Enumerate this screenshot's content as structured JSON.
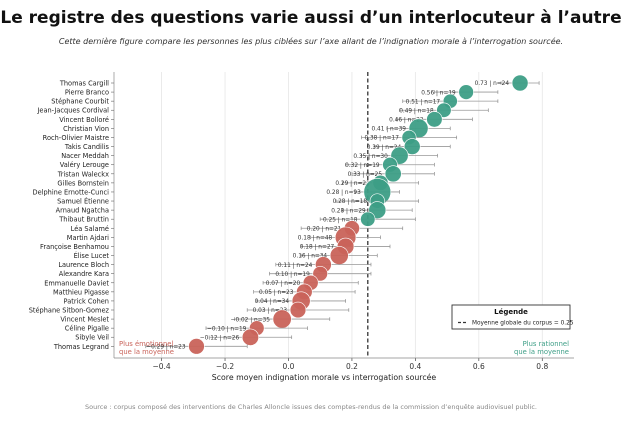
{
  "title": "Le registre des questions varie aussi d’un interlocuteur à l’autre",
  "subtitle": "Cette dernière figure compare les personnes les plus ciblées sur l’axe allant de l’indignation morale à l’interrogation sourcée.",
  "source": "Source : corpus composé des interventions de Charles Alloncle issues des comptes-rendus de la commission d’enquête audiovisuel public.",
  "annotations": {
    "left": [
      "Plus émotionnel",
      "que la moyenne"
    ],
    "right": [
      "Plus rationnel",
      "que la moyenne"
    ]
  },
  "colors": {
    "positive": "#3d9e86",
    "negative": "#c9635a",
    "errorbar": "#999999",
    "mean_line": "#333333"
  },
  "chart_data": {
    "type": "scatter",
    "xlabel": "Score moyen indignation morale vs interrogation sourcée",
    "ylabel": "",
    "xlim": [
      -0.55,
      0.9
    ],
    "xticks": [
      -0.4,
      -0.2,
      0.0,
      0.2,
      0.4,
      0.6,
      0.8
    ],
    "xticklabels": [
      "−0.4",
      "−0.2",
      "0.0",
      "0.2",
      "0.4",
      "0.6",
      "0.8"
    ],
    "grid": "vertical",
    "mean": 0.25,
    "legend": {
      "title": "Légende",
      "entry": "Moyenne globale du corpus = 0.25",
      "position": "lower right"
    },
    "points": [
      {
        "name": "Thomas Cargill",
        "value": 0.73,
        "n": 24,
        "label": "0.73 | n=24",
        "lo": 0.67,
        "hi": 0.79
      },
      {
        "name": "Pierre Branco",
        "value": 0.56,
        "n": 19,
        "label": "0.56 | n=19",
        "lo": 0.46,
        "hi": 0.66
      },
      {
        "name": "Stéphane Courbit",
        "value": 0.51,
        "n": 17,
        "label": "0.51 | n=17",
        "lo": 0.36,
        "hi": 0.66
      },
      {
        "name": "Jean-Jacques Cordival",
        "value": 0.49,
        "n": 18,
        "label": "0.49 | n=18",
        "lo": 0.35,
        "hi": 0.63
      },
      {
        "name": "Vincent Bolloré",
        "value": 0.46,
        "n": 22,
        "label": "0.46 | n=22",
        "lo": 0.34,
        "hi": 0.58
      },
      {
        "name": "Christian Vion",
        "value": 0.41,
        "n": 39,
        "label": "0.41 | n=39",
        "lo": 0.31,
        "hi": 0.51
      },
      {
        "name": "Roch-Olivier Maistre",
        "value": 0.38,
        "n": 17,
        "label": "0.38 | n=17",
        "lo": 0.23,
        "hi": 0.53
      },
      {
        "name": "Takis Candilis",
        "value": 0.39,
        "n": 24,
        "label": "0.39 | n=24",
        "lo": 0.27,
        "hi": 0.51
      },
      {
        "name": "Nacer Meddah",
        "value": 0.35,
        "n": 30,
        "label": "0.35 | n=30",
        "lo": 0.23,
        "hi": 0.47
      },
      {
        "name": "Valéry Lerouge",
        "value": 0.32,
        "n": 19,
        "label": "0.32 | n=19",
        "lo": 0.18,
        "hi": 0.46
      },
      {
        "name": "Tristan Waleckx",
        "value": 0.33,
        "n": 25,
        "label": "0.33 | n=25",
        "lo": 0.2,
        "hi": 0.46
      },
      {
        "name": "Gilles Bornstein",
        "value": 0.29,
        "n": 21,
        "label": "0.29 | n=21",
        "lo": 0.17,
        "hi": 0.41
      },
      {
        "name": "Delphine Ernotte-Cunci",
        "value": 0.28,
        "n": 93,
        "label": "0.28 | n=93",
        "lo": 0.21,
        "hi": 0.35
      },
      {
        "name": "Samuel Étienne",
        "value": 0.28,
        "n": 18,
        "label": "0.28 | n=18",
        "lo": 0.15,
        "hi": 0.41
      },
      {
        "name": "Arnaud Ngatcha",
        "value": 0.28,
        "n": 29,
        "label": "0.28 | n=29",
        "lo": 0.17,
        "hi": 0.39
      },
      {
        "name": "Thibaut Bruttin",
        "value": 0.25,
        "n": 18,
        "label": "0.25 | n=18",
        "lo": 0.1,
        "hi": 0.4
      },
      {
        "name": "Léa Salamé",
        "value": 0.2,
        "n": 21,
        "label": "0.20 | n=21",
        "lo": 0.04,
        "hi": 0.36
      },
      {
        "name": "Martin Ajdari",
        "value": 0.18,
        "n": 48,
        "label": "0.18 | n=48",
        "lo": 0.07,
        "hi": 0.29
      },
      {
        "name": "Françoise Benhamou",
        "value": 0.18,
        "n": 27,
        "label": "0.18 | n=27",
        "lo": 0.04,
        "hi": 0.32
      },
      {
        "name": "Élise Lucet",
        "value": 0.16,
        "n": 34,
        "label": "0.16 | n=34",
        "lo": 0.04,
        "hi": 0.28
      },
      {
        "name": "Laurence Bloch",
        "value": 0.11,
        "n": 24,
        "label": "0.11 | n=24",
        "lo": -0.04,
        "hi": 0.26
      },
      {
        "name": "Alexandre Kara",
        "value": 0.1,
        "n": 19,
        "label": "0.10 | n=19",
        "lo": -0.06,
        "hi": 0.26
      },
      {
        "name": "Emmanuelle Daviet",
        "value": 0.07,
        "n": 20,
        "label": "0.07 | n=20",
        "lo": -0.08,
        "hi": 0.22
      },
      {
        "name": "Matthieu Pigasse",
        "value": 0.05,
        "n": 23,
        "label": "0.05 | n=23",
        "lo": -0.11,
        "hi": 0.21
      },
      {
        "name": "Patrick Cohen",
        "value": 0.04,
        "n": 34,
        "label": "0.04 | n=34",
        "lo": -0.1,
        "hi": 0.18
      },
      {
        "name": "Stéphane Sitbon-Gomez",
        "value": 0.03,
        "n": 23,
        "label": "0.03 | n=23",
        "lo": -0.13,
        "hi": 0.19
      },
      {
        "name": "Vincent Meslet",
        "value": -0.02,
        "n": 35,
        "label": "−0.02 | n=35",
        "lo": -0.17,
        "hi": 0.13
      },
      {
        "name": "Céline Pigalle",
        "value": -0.1,
        "n": 19,
        "label": "−0.10 | n=19",
        "lo": -0.26,
        "hi": 0.06
      },
      {
        "name": "Sibyle Veil",
        "value": -0.12,
        "n": 26,
        "label": "−0.12 | n=26",
        "lo": -0.25,
        "hi": 0.01
      },
      {
        "name": "Thomas Legrand",
        "value": -0.29,
        "n": 23,
        "label": "−0.29 | n=23",
        "lo": -0.45,
        "hi": -0.13
      }
    ]
  }
}
